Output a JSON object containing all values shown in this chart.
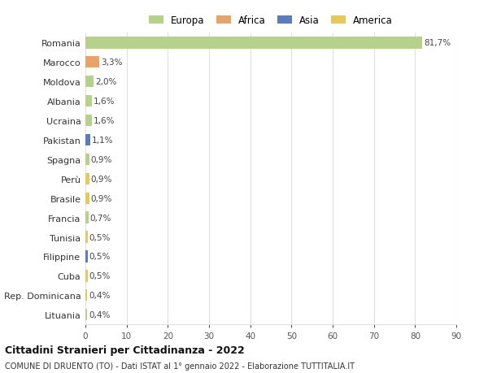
{
  "categories": [
    "Romania",
    "Marocco",
    "Moldova",
    "Albania",
    "Ucraina",
    "Pakistan",
    "Spagna",
    "Perù",
    "Brasile",
    "Francia",
    "Tunisia",
    "Filippine",
    "Cuba",
    "Rep. Dominicana",
    "Lituania"
  ],
  "values": [
    81.7,
    3.3,
    2.0,
    1.6,
    1.6,
    1.1,
    0.9,
    0.9,
    0.9,
    0.7,
    0.5,
    0.5,
    0.5,
    0.4,
    0.4
  ],
  "labels": [
    "81,7%",
    "3,3%",
    "2,0%",
    "1,6%",
    "1,6%",
    "1,1%",
    "0,9%",
    "0,9%",
    "0,9%",
    "0,7%",
    "0,5%",
    "0,5%",
    "0,5%",
    "0,4%",
    "0,4%"
  ],
  "colors": [
    "#b5d18a",
    "#e8a468",
    "#b5d18a",
    "#b5d18a",
    "#b5d18a",
    "#5b7bbf",
    "#b5d18a",
    "#e8c85a",
    "#e8c85a",
    "#b5d18a",
    "#e8c85a",
    "#5b7bbf",
    "#e8c85a",
    "#e8c85a",
    "#b5d18a"
  ],
  "legend_labels": [
    "Europa",
    "Africa",
    "Asia",
    "America"
  ],
  "legend_colors": [
    "#b5d18a",
    "#e8a468",
    "#5b7bbf",
    "#e8c85a"
  ],
  "title1": "Cittadini Stranieri per Cittadinanza - 2022",
  "title2": "COMUNE DI DRUENTO (TO) - Dati ISTAT al 1° gennaio 2022 - Elaborazione TUTTITALIA.IT",
  "xlim": [
    0,
    90
  ],
  "xticks": [
    0,
    10,
    20,
    30,
    40,
    50,
    60,
    70,
    80,
    90
  ],
  "background_color": "#ffffff",
  "grid_color": "#e0e0e0"
}
